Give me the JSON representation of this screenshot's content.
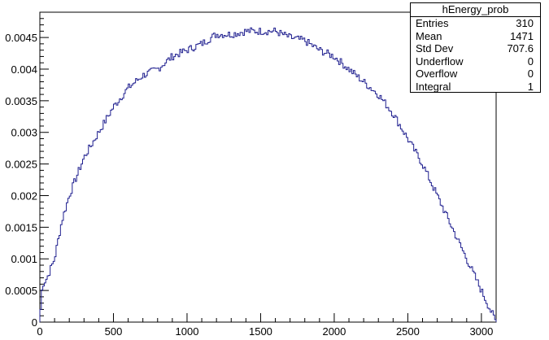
{
  "chart_data": {
    "type": "histogram",
    "title": "hEnergy_prob",
    "xlabel": "",
    "ylabel": "",
    "xlim": [
      0,
      3100
    ],
    "ylim": [
      0,
      0.0049
    ],
    "x_ticks": [
      0,
      500,
      1000,
      1500,
      2000,
      2500,
      3000
    ],
    "y_ticks": [
      0,
      0.0005,
      0.001,
      0.0015,
      0.002,
      0.0025,
      0.003,
      0.0035,
      0.004,
      0.0045
    ],
    "y_tick_labels": [
      "0",
      "0.0005",
      "0.001",
      "0.0015",
      "0.002",
      "0.0025",
      "0.003",
      "0.0035",
      "0.004",
      "0.0045"
    ],
    "bin_width": 10,
    "nbins": 310,
    "series": [
      {
        "name": "hEnergy_prob",
        "color": "#1f1f8f",
        "shape_points": [
          [
            0,
            0.0
          ],
          [
            10,
            0.0004
          ],
          [
            20,
            0.0006
          ],
          [
            50,
            0.0007
          ],
          [
            100,
            0.001
          ],
          [
            150,
            0.0016
          ],
          [
            200,
            0.002
          ],
          [
            300,
            0.0026
          ],
          [
            400,
            0.003
          ],
          [
            500,
            0.0034
          ],
          [
            600,
            0.0037
          ],
          [
            700,
            0.0039
          ],
          [
            800,
            0.004
          ],
          [
            900,
            0.0042
          ],
          [
            1000,
            0.0043
          ],
          [
            1100,
            0.0044
          ],
          [
            1200,
            0.00455
          ],
          [
            1300,
            0.00455
          ],
          [
            1400,
            0.0046
          ],
          [
            1500,
            0.0046
          ],
          [
            1600,
            0.0046
          ],
          [
            1700,
            0.0045
          ],
          [
            1800,
            0.00445
          ],
          [
            1900,
            0.0043
          ],
          [
            2000,
            0.0042
          ],
          [
            2100,
            0.004
          ],
          [
            2200,
            0.0038
          ],
          [
            2300,
            0.0036
          ],
          [
            2400,
            0.0033
          ],
          [
            2500,
            0.0029
          ],
          [
            2600,
            0.0025
          ],
          [
            2700,
            0.002
          ],
          [
            2800,
            0.0015
          ],
          [
            2900,
            0.001
          ],
          [
            3000,
            0.0005
          ],
          [
            3100,
            0.0
          ]
        ]
      }
    ]
  },
  "stats_box": {
    "title": "hEnergy_prob",
    "rows": [
      {
        "label": "Entries",
        "value": "310"
      },
      {
        "label": "Mean",
        "value": "1471"
      },
      {
        "label": "Std Dev",
        "value": "707.6"
      },
      {
        "label": "Underflow",
        "value": "0"
      },
      {
        "label": "Overflow",
        "value": "0"
      },
      {
        "label": "Integral",
        "value": "1"
      }
    ]
  }
}
